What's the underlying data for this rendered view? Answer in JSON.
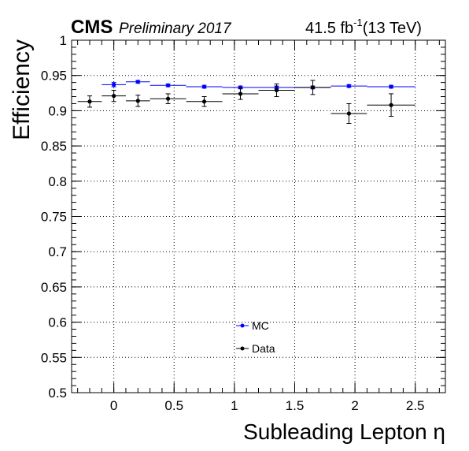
{
  "header": {
    "cms": "CMS",
    "preliminary": "Preliminary 2017",
    "lumi_value": "41.5 fb",
    "lumi_exp": "-1",
    "energy": "(13 TeV)"
  },
  "chart_data": {
    "type": "scatter",
    "title": "",
    "xlabel": "Subleading Lepton η",
    "ylabel": "Efficiency",
    "xlim": [
      -0.35,
      2.75
    ],
    "ylim": [
      0.5,
      1.0
    ],
    "x_ticks": [
      "0",
      "0.5",
      "1",
      "1.5",
      "2",
      "2.5"
    ],
    "y_ticks": [
      "0.5",
      "0.55",
      "0.6",
      "0.65",
      "0.7",
      "0.75",
      "0.8",
      "0.85",
      "0.9",
      "0.95",
      "1"
    ],
    "grid": true,
    "legend_position": "lower-center",
    "series": [
      {
        "name": "MC",
        "color": "#0000ff",
        "points": [
          {
            "x": 0.0,
            "xlo": -0.1,
            "xhi": 0.1,
            "y": 0.937,
            "yerr": 0.003
          },
          {
            "x": 0.2,
            "xlo": 0.1,
            "xhi": 0.3,
            "y": 0.941,
            "yerr": 0.002
          },
          {
            "x": 0.45,
            "xlo": 0.3,
            "xhi": 0.6,
            "y": 0.936,
            "yerr": 0.002
          },
          {
            "x": 0.75,
            "xlo": 0.6,
            "xhi": 0.9,
            "y": 0.934,
            "yerr": 0.002
          },
          {
            "x": 1.05,
            "xlo": 0.9,
            "xhi": 1.2,
            "y": 0.933,
            "yerr": 0.002
          },
          {
            "x": 1.35,
            "xlo": 1.2,
            "xhi": 1.5,
            "y": 0.933,
            "yerr": 0.002
          },
          {
            "x": 1.65,
            "xlo": 1.5,
            "xhi": 1.8,
            "y": 0.933,
            "yerr": 0.002
          },
          {
            "x": 1.95,
            "xlo": 1.8,
            "xhi": 2.1,
            "y": 0.935,
            "yerr": 0.002
          },
          {
            "x": 2.3,
            "xlo": 2.1,
            "xhi": 2.5,
            "y": 0.934,
            "yerr": 0.002
          }
        ]
      },
      {
        "name": "Data",
        "color": "#000000",
        "points": [
          {
            "x": -0.2,
            "xlo": -0.3,
            "xhi": -0.1,
            "y": 0.913,
            "yerr": 0.008
          },
          {
            "x": 0.0,
            "xlo": -0.1,
            "xhi": 0.1,
            "y": 0.921,
            "yerr": 0.008
          },
          {
            "x": 0.2,
            "xlo": 0.1,
            "xhi": 0.3,
            "y": 0.914,
            "yerr": 0.008
          },
          {
            "x": 0.45,
            "xlo": 0.3,
            "xhi": 0.6,
            "y": 0.917,
            "yerr": 0.007
          },
          {
            "x": 0.75,
            "xlo": 0.6,
            "xhi": 0.9,
            "y": 0.913,
            "yerr": 0.007
          },
          {
            "x": 1.05,
            "xlo": 0.9,
            "xhi": 1.2,
            "y": 0.924,
            "yerr": 0.008
          },
          {
            "x": 1.35,
            "xlo": 1.2,
            "xhi": 1.5,
            "y": 0.929,
            "yerr": 0.009
          },
          {
            "x": 1.65,
            "xlo": 1.5,
            "xhi": 1.8,
            "y": 0.933,
            "yerr": 0.01
          },
          {
            "x": 1.95,
            "xlo": 1.8,
            "xhi": 2.1,
            "y": 0.896,
            "yerr": 0.014
          },
          {
            "x": 2.3,
            "xlo": 2.1,
            "xhi": 2.5,
            "y": 0.908,
            "yerr": 0.016
          }
        ]
      }
    ]
  }
}
